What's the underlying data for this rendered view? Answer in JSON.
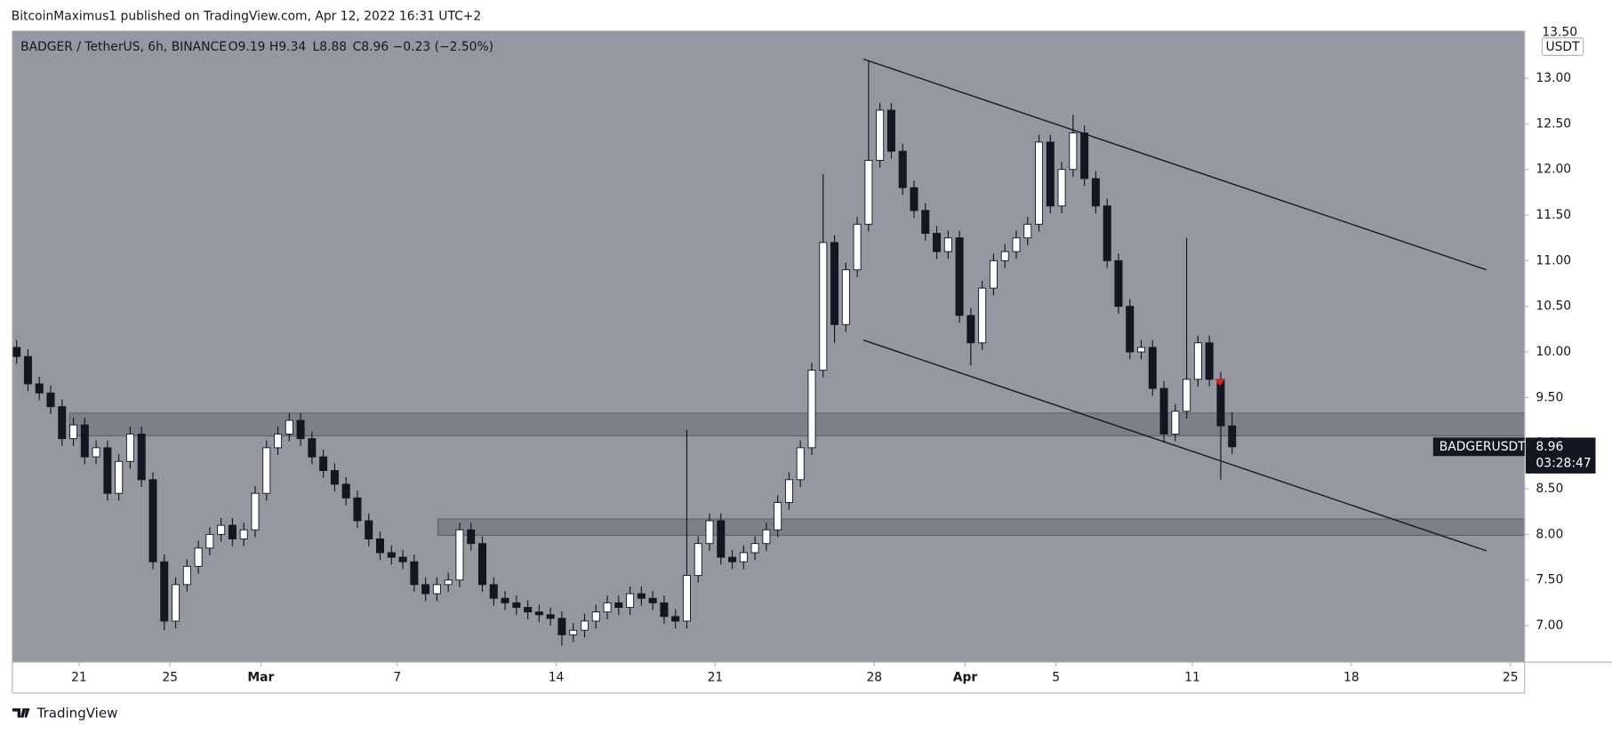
{
  "header": {
    "title": "BitcoinMaximus1 published on TradingView.com, Apr 12, 2022 16:31 UTC+2"
  },
  "footer": {
    "brand": "TradingView"
  },
  "chart_data": {
    "type": "candlestick",
    "legend": {
      "symbol": "BADGER / TetherUS, 6h, BINANCE",
      "ohlc_labels": [
        "O",
        "H",
        "L",
        "C"
      ],
      "o": 9.19,
      "h": 9.34,
      "l": 8.88,
      "c": 8.96,
      "change": "−0.23 (−2.50%)"
    },
    "unit": "USDT",
    "price_tag": {
      "symbol": "BADGERUSDT",
      "price": 8.96,
      "countdown": "03:28:47"
    },
    "background": "#9598a1",
    "up_color": "#ffffff",
    "down_color": "#131722",
    "xlim": [
      "2022-02-18T01:30",
      "2022-04-25T15:00"
    ],
    "ylim": [
      6.6,
      13.52
    ],
    "yticks": [
      {
        "value": 7,
        "label": "7.00"
      },
      {
        "value": 7.5,
        "label": "7.50"
      },
      {
        "value": 8,
        "label": "8.00"
      },
      {
        "value": 8.5,
        "label": "8.50"
      },
      {
        "value": 9,
        "label": "9.00"
      },
      {
        "value": 9.5,
        "label": "9.50"
      },
      {
        "value": 10,
        "label": "10.00"
      },
      {
        "value": 10.5,
        "label": "10.50"
      },
      {
        "value": 11,
        "label": "11.00"
      },
      {
        "value": 11.5,
        "label": "11.50"
      },
      {
        "value": 12,
        "label": "12.00"
      },
      {
        "value": 12.5,
        "label": "12.50"
      },
      {
        "value": 13,
        "label": "13.00"
      },
      {
        "value": 13.5,
        "label": "13.50"
      }
    ],
    "xticks": [
      {
        "value": "2022-02-21T00:00",
        "label": "21"
      },
      {
        "value": "2022-02-25T00:00",
        "label": "25"
      },
      {
        "value": "2022-03-01T00:00",
        "label": "Mar"
      },
      {
        "value": "2022-03-07T00:00",
        "label": "7"
      },
      {
        "value": "2022-03-14T00:00",
        "label": "14"
      },
      {
        "value": "2022-03-21T00:00",
        "label": "21"
      },
      {
        "value": "2022-03-28T00:00",
        "label": "28"
      },
      {
        "value": "2022-04-01T00:00",
        "label": "Apr"
      },
      {
        "value": "2022-04-05T00:00",
        "label": "5"
      },
      {
        "value": "2022-04-11T00:00",
        "label": "11"
      },
      {
        "value": "2022-04-18T00:00",
        "label": "18"
      },
      {
        "value": "2022-04-25T00:00",
        "label": "25"
      }
    ],
    "x": [
      "2022-02-18T00:00",
      "2022-02-18T12:00",
      "2022-02-19T00:00",
      "2022-02-19T12:00",
      "2022-02-20T00:00",
      "2022-02-20T12:00",
      "2022-02-21T00:00",
      "2022-02-21T12:00",
      "2022-02-22T00:00",
      "2022-02-22T12:00",
      "2022-02-23T00:00",
      "2022-02-23T12:00",
      "2022-02-24T00:00",
      "2022-02-24T12:00",
      "2022-02-25T00:00",
      "2022-02-25T12:00",
      "2022-02-26T00:00",
      "2022-02-26T12:00",
      "2022-02-27T00:00",
      "2022-02-27T12:00",
      "2022-02-28T00:00",
      "2022-02-28T12:00",
      "2022-03-01T00:00",
      "2022-03-01T12:00",
      "2022-03-02T00:00",
      "2022-03-02T12:00",
      "2022-03-03T00:00",
      "2022-03-03T12:00",
      "2022-03-04T00:00",
      "2022-03-04T12:00",
      "2022-03-05T00:00",
      "2022-03-05T12:00",
      "2022-03-06T00:00",
      "2022-03-06T12:00",
      "2022-03-07T00:00",
      "2022-03-07T12:00",
      "2022-03-08T00:00",
      "2022-03-08T12:00",
      "2022-03-09T00:00",
      "2022-03-09T12:00",
      "2022-03-10T00:00",
      "2022-03-10T12:00",
      "2022-03-11T00:00",
      "2022-03-11T12:00",
      "2022-03-12T00:00",
      "2022-03-12T12:00",
      "2022-03-13T00:00",
      "2022-03-13T12:00",
      "2022-03-14T00:00",
      "2022-03-14T12:00",
      "2022-03-15T00:00",
      "2022-03-15T12:00",
      "2022-03-16T00:00",
      "2022-03-16T12:00",
      "2022-03-17T00:00",
      "2022-03-17T12:00",
      "2022-03-18T00:00",
      "2022-03-18T12:00",
      "2022-03-19T00:00",
      "2022-03-19T12:00",
      "2022-03-20T00:00",
      "2022-03-20T12:00",
      "2022-03-21T00:00",
      "2022-03-21T12:00",
      "2022-03-22T00:00",
      "2022-03-22T12:00",
      "2022-03-23T00:00",
      "2022-03-23T12:00",
      "2022-03-24T00:00",
      "2022-03-24T12:00",
      "2022-03-25T00:00",
      "2022-03-25T12:00",
      "2022-03-26T00:00",
      "2022-03-26T12:00",
      "2022-03-27T00:00",
      "2022-03-27T12:00",
      "2022-03-28T00:00",
      "2022-03-28T12:00",
      "2022-03-29T00:00",
      "2022-03-29T12:00",
      "2022-03-30T00:00",
      "2022-03-30T12:00",
      "2022-03-31T00:00",
      "2022-03-31T12:00",
      "2022-04-01T00:00",
      "2022-04-01T12:00",
      "2022-04-02T00:00",
      "2022-04-02T12:00",
      "2022-04-03T00:00",
      "2022-04-03T12:00",
      "2022-04-04T00:00",
      "2022-04-04T12:00",
      "2022-04-05T00:00",
      "2022-04-05T12:00",
      "2022-04-06T00:00",
      "2022-04-06T12:00",
      "2022-04-07T00:00",
      "2022-04-07T12:00",
      "2022-04-08T00:00",
      "2022-04-08T12:00",
      "2022-04-09T00:00",
      "2022-04-09T12:00",
      "2022-04-10T00:00",
      "2022-04-10T12:00",
      "2022-04-11T00:00",
      "2022-04-11T12:00",
      "2022-04-12T00:00",
      "2022-04-12T12:00"
    ],
    "open": [
      10.05,
      9.95,
      9.65,
      9.55,
      9.4,
      9.05,
      9.2,
      8.85,
      8.95,
      8.45,
      8.8,
      9.1,
      8.6,
      7.7,
      7.05,
      7.45,
      7.65,
      7.85,
      8.0,
      8.1,
      7.95,
      8.05,
      8.45,
      8.95,
      9.1,
      9.25,
      9.05,
      8.85,
      8.7,
      8.55,
      8.4,
      8.15,
      7.95,
      7.8,
      7.75,
      7.7,
      7.45,
      7.35,
      7.45,
      7.5,
      8.05,
      7.9,
      7.45,
      7.3,
      7.25,
      7.2,
      7.15,
      7.12,
      7.08,
      6.9,
      6.95,
      7.05,
      7.15,
      7.25,
      7.2,
      7.35,
      7.3,
      7.25,
      7.1,
      7.05,
      7.55,
      7.9,
      8.15,
      7.75,
      7.7,
      7.8,
      7.9,
      8.05,
      8.35,
      8.6,
      8.95,
      9.8,
      11.2,
      10.3,
      10.9,
      11.4,
      12.1,
      12.65,
      12.2,
      11.8,
      11.55,
      11.3,
      11.1,
      11.25,
      10.4,
      10.1,
      10.7,
      11.0,
      11.1,
      11.25,
      11.4,
      12.3,
      11.6,
      12.0,
      12.4,
      11.9,
      11.6,
      11.0,
      10.5,
      10.0,
      10.05,
      9.6,
      9.1,
      9.35,
      9.7,
      10.1,
      9.7,
      9.19
    ],
    "high": [
      10.13,
      10.03,
      9.73,
      9.63,
      9.48,
      9.28,
      9.28,
      9.03,
      9.03,
      8.88,
      9.18,
      9.18,
      8.68,
      7.78,
      7.53,
      7.73,
      7.93,
      8.08,
      8.18,
      8.18,
      8.13,
      8.53,
      9.03,
      9.18,
      9.33,
      9.33,
      9.13,
      8.93,
      8.78,
      8.63,
      8.48,
      8.23,
      8.03,
      7.88,
      7.83,
      7.78,
      7.53,
      7.53,
      7.58,
      8.13,
      8.13,
      7.98,
      7.53,
      7.38,
      7.33,
      7.28,
      7.23,
      7.2,
      7.16,
      7.03,
      7.13,
      7.23,
      7.33,
      7.33,
      7.43,
      7.43,
      7.38,
      7.33,
      7.18,
      9.15,
      7.98,
      8.23,
      8.23,
      7.83,
      7.88,
      7.98,
      8.13,
      8.43,
      8.68,
      9.03,
      9.88,
      11.95,
      11.28,
      10.98,
      11.48,
      13.2,
      12.73,
      12.73,
      12.28,
      11.88,
      11.63,
      11.38,
      11.33,
      11.33,
      10.48,
      10.78,
      11.08,
      11.18,
      11.33,
      11.48,
      12.38,
      12.38,
      12.08,
      12.6,
      12.48,
      11.98,
      11.68,
      11.08,
      10.58,
      10.13,
      10.13,
      9.68,
      9.43,
      11.25,
      10.18,
      10.18,
      9.78,
      9.34
    ],
    "low": [
      9.87,
      9.57,
      9.47,
      9.32,
      8.97,
      8.97,
      8.77,
      8.77,
      8.37,
      8.37,
      8.72,
      8.52,
      7.62,
      6.95,
      6.97,
      7.37,
      7.57,
      7.77,
      7.92,
      7.87,
      7.87,
      7.97,
      8.37,
      8.87,
      9.02,
      8.97,
      8.77,
      8.62,
      8.47,
      8.32,
      8.07,
      7.87,
      7.72,
      7.67,
      7.62,
      7.37,
      7.27,
      7.27,
      7.37,
      7.42,
      7.82,
      7.37,
      7.22,
      7.17,
      7.12,
      7.07,
      7.04,
      7.0,
      6.78,
      6.82,
      6.87,
      6.97,
      7.07,
      7.12,
      7.12,
      7.22,
      7.17,
      7.02,
      6.97,
      6.97,
      7.47,
      7.82,
      7.67,
      7.62,
      7.62,
      7.72,
      7.82,
      7.97,
      8.27,
      8.52,
      8.87,
      9.72,
      10.1,
      10.22,
      10.82,
      11.32,
      12.02,
      12.12,
      11.72,
      11.47,
      11.22,
      11.02,
      11.02,
      10.32,
      9.85,
      10.02,
      10.62,
      10.92,
      11.02,
      11.17,
      11.32,
      11.52,
      11.52,
      11.92,
      11.82,
      11.52,
      10.92,
      10.42,
      9.92,
      9.92,
      9.52,
      9.02,
      9.02,
      9.27,
      9.62,
      9.62,
      8.6,
      8.88
    ],
    "close": [
      9.95,
      9.65,
      9.55,
      9.4,
      9.05,
      9.2,
      8.85,
      8.95,
      8.45,
      8.8,
      9.1,
      8.6,
      7.7,
      7.05,
      7.45,
      7.65,
      7.85,
      8.0,
      8.1,
      7.95,
      8.05,
      8.45,
      8.95,
      9.1,
      9.25,
      9.05,
      8.85,
      8.7,
      8.55,
      8.4,
      8.15,
      7.95,
      7.8,
      7.75,
      7.7,
      7.45,
      7.35,
      7.45,
      7.5,
      8.05,
      7.9,
      7.45,
      7.3,
      7.25,
      7.2,
      7.15,
      7.12,
      7.08,
      6.9,
      6.95,
      7.05,
      7.15,
      7.25,
      7.2,
      7.35,
      7.3,
      7.25,
      7.1,
      7.05,
      7.55,
      7.9,
      8.15,
      7.75,
      7.7,
      7.8,
      7.9,
      8.05,
      8.35,
      8.6,
      8.95,
      9.8,
      11.2,
      10.3,
      10.9,
      11.4,
      12.1,
      12.65,
      12.2,
      11.8,
      11.55,
      11.3,
      11.1,
      11.25,
      10.4,
      10.1,
      10.7,
      11.0,
      11.1,
      11.25,
      11.4,
      12.3,
      11.6,
      12.0,
      12.4,
      11.9,
      11.6,
      11.0,
      10.5,
      10.0,
      10.05,
      9.6,
      9.1,
      9.35,
      9.7,
      10.1,
      9.7,
      9.19,
      8.96
    ],
    "zones": [
      {
        "start": "2022-02-20T14:00",
        "top": 9.33,
        "bottom": 9.08
      },
      {
        "start": "2022-03-08T19:00",
        "top": 8.17,
        "bottom": 7.99
      }
    ],
    "trendlines": [
      {
        "from": [
          "2022-03-27T12:30",
          13.21
        ],
        "to": [
          "2022-04-23T22:45",
          10.9
        ]
      },
      {
        "from": [
          "2022-03-27T12:30",
          10.13
        ],
        "to": [
          "2022-04-23T22:45",
          7.82
        ]
      }
    ],
    "marker": {
      "x": "2022-04-12T05:00",
      "price": 9.67,
      "color": "#e0201b"
    }
  }
}
